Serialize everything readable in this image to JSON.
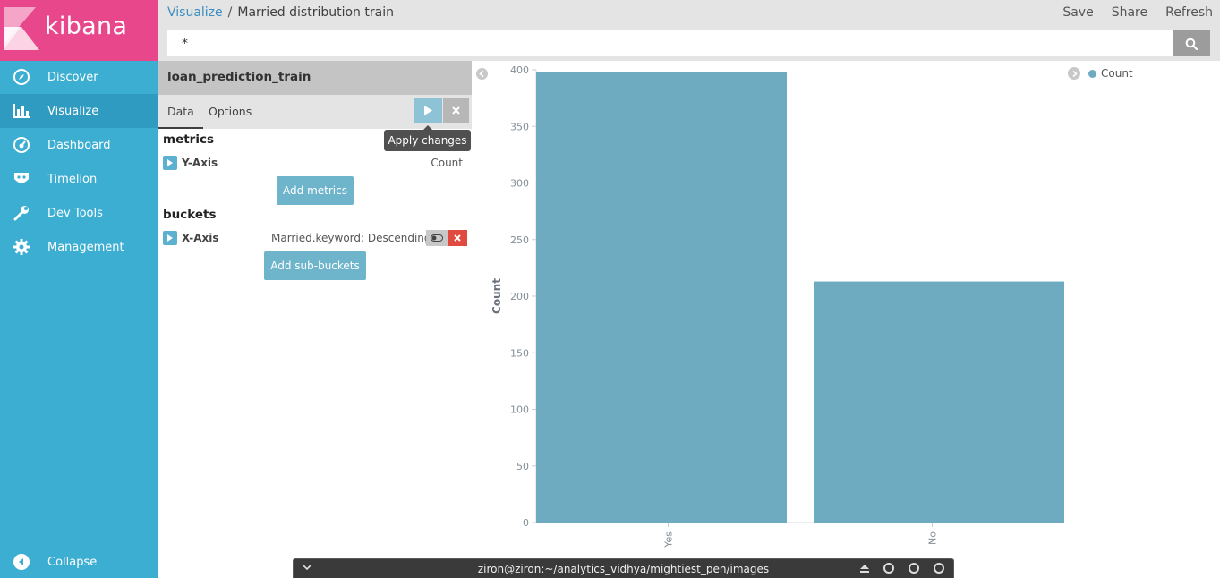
{
  "app": {
    "logo_text": "kibana"
  },
  "sidebar": {
    "items": [
      {
        "label": "Discover",
        "icon": "compass-icon"
      },
      {
        "label": "Visualize",
        "icon": "bar-chart-icon"
      },
      {
        "label": "Dashboard",
        "icon": "dashboard-gauge-icon"
      },
      {
        "label": "Timelion",
        "icon": "timelion-mask-icon"
      },
      {
        "label": "Dev Tools",
        "icon": "wrench-icon"
      },
      {
        "label": "Management",
        "icon": "gear-icon"
      }
    ],
    "collapse_label": "Collapse"
  },
  "header": {
    "breadcrumb_root": "Visualize",
    "breadcrumb_separator": "/",
    "breadcrumb_current": "Married distribution train",
    "actions": {
      "save": "Save",
      "share": "Share",
      "refresh": "Refresh"
    },
    "query_value": "*"
  },
  "editor": {
    "index_name": "loan_prediction_train",
    "tabs": {
      "data": "Data",
      "options": "Options"
    },
    "apply_tooltip": "Apply changes",
    "metrics": {
      "title": "metrics",
      "y_axis_label": "Y-Axis",
      "y_axis_summary": "Count",
      "add_button": "Add metrics"
    },
    "buckets": {
      "title": "buckets",
      "x_axis_label": "X-Axis",
      "x_axis_summary": "Married.keyword: Descending",
      "add_button": "Add sub-buckets"
    }
  },
  "colors": {
    "sidebar": "#3caed2",
    "logo": "#e8488b",
    "bar": "#6eabc1",
    "remove": "#e04a3f"
  },
  "chart_data": {
    "type": "bar",
    "categories": [
      "Yes",
      "No"
    ],
    "values": [
      398,
      213
    ],
    "series": [
      {
        "name": "Count",
        "values": [
          398,
          213
        ]
      }
    ],
    "ylabel": "Count",
    "xlabel": "",
    "ylim": [
      0,
      400
    ],
    "yticks": [
      0,
      50,
      100,
      150,
      200,
      250,
      300,
      350,
      400
    ],
    "legend": {
      "position": "top-right",
      "entries": [
        "Count"
      ]
    },
    "grid": false
  },
  "terminal": {
    "title": "ziron@ziron:~/analytics_vidhya/mightiest_pen/images"
  }
}
